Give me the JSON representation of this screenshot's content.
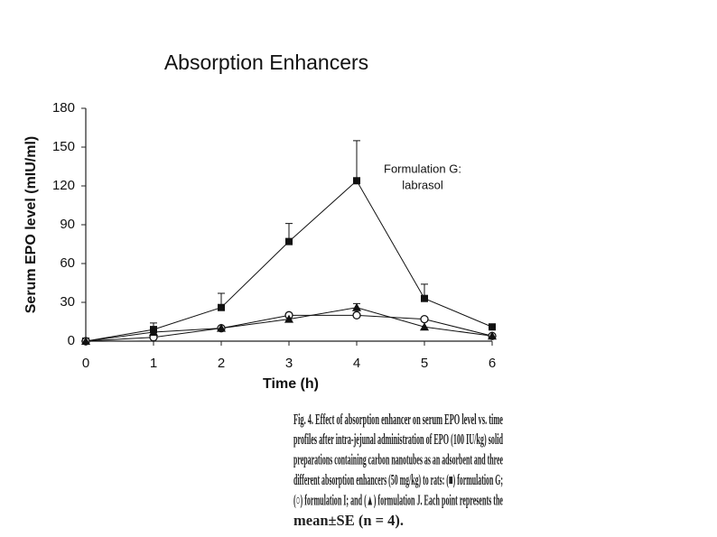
{
  "chart_data": {
    "type": "line",
    "title": "Absorption Enhancers",
    "annotation": [
      "Formulation G:",
      "labrasol"
    ],
    "x_label": "Time (h)",
    "y_label": "Serum EPO level (mIU/ml)",
    "x": [
      0,
      1,
      2,
      3,
      4,
      5,
      6
    ],
    "xlim": [
      0,
      6
    ],
    "xticks": [
      0,
      1,
      2,
      3,
      4,
      5,
      6
    ],
    "ylim": [
      0,
      180
    ],
    "yticks": [
      0,
      30,
      60,
      90,
      120,
      150,
      180
    ],
    "grid": false,
    "series": [
      {
        "marker": "square",
        "color": "#111111",
        "values": [
          0,
          9,
          26,
          77,
          124,
          33,
          11
        ],
        "errors": [
          0,
          5,
          11,
          14,
          31,
          11,
          0
        ]
      },
      {
        "marker": "circle",
        "color": "#111111",
        "values": [
          0,
          3,
          10,
          20,
          20,
          17,
          4
        ]
      },
      {
        "marker": "triangle",
        "color": "#111111",
        "values": [
          0,
          7,
          10,
          17,
          26,
          11,
          4
        ],
        "errors": [
          0,
          0,
          0,
          0,
          3,
          0,
          0
        ]
      }
    ]
  },
  "caption": [
    "Fig. 4.  Effect of absorption enhancer on serum EPO level vs. time",
    "profiles after intra-jejunal administration of EPO (100 IU/kg) solid",
    "preparations containing carbon nanotubes as an adsorbent and three",
    "different absorption enhancers (50 mg/kg) to rats: (■) formulation G;",
    "(○) formulation I; and (▲) formulation J. Each point represents the",
    "mean±SE (n = 4)."
  ]
}
